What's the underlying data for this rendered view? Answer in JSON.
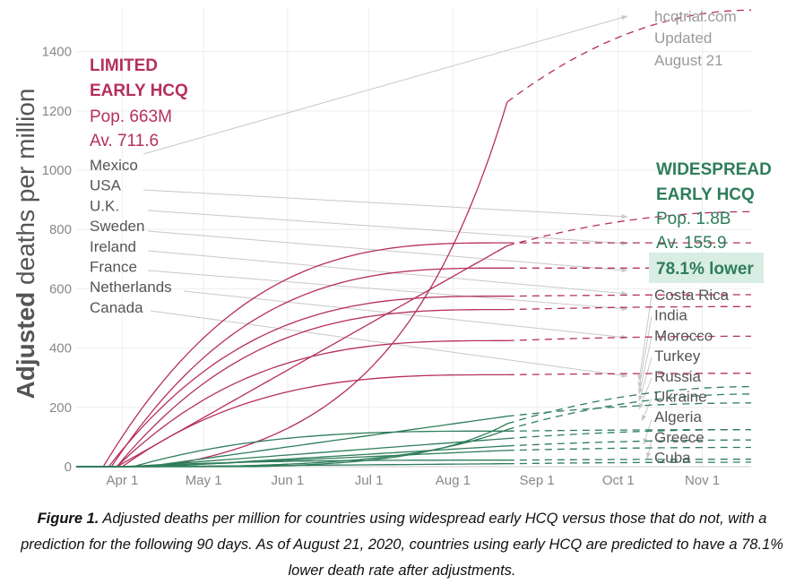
{
  "chart_data": {
    "type": "line",
    "ylabel_bold": "Adjusted",
    "ylabel_rest": " deaths per million",
    "ylim": [
      0,
      1550
    ],
    "yticks": [
      0,
      200,
      400,
      600,
      800,
      1000,
      1200,
      1400
    ],
    "xticks": [
      {
        "label": "Apr 1",
        "date": "2020-04-01"
      },
      {
        "label": "May 1",
        "date": "2020-05-01"
      },
      {
        "label": "Jun 1",
        "date": "2020-06-01"
      },
      {
        "label": "Jul 1",
        "date": "2020-07-01"
      },
      {
        "label": "Aug 1",
        "date": "2020-08-01"
      },
      {
        "label": "Sep 1",
        "date": "2020-09-01"
      },
      {
        "label": "Oct 1",
        "date": "2020-10-01"
      },
      {
        "label": "Nov 1",
        "date": "2020-11-01"
      }
    ],
    "xlim": [
      "2020-03-15",
      "2020-11-19"
    ],
    "observed_end": "2020-08-21",
    "source_note": [
      "hcqtrial.com",
      "Updated",
      "August 21"
    ],
    "limited_group": {
      "title": [
        "LIMITED",
        "EARLY HCQ"
      ],
      "pop": "Pop. 663M",
      "avg": "Av. 711.6",
      "color": "#b5305a",
      "countries": [
        "Mexico",
        "USA",
        "U.K.",
        "Sweden",
        "Ireland",
        "France",
        "Netherlands",
        "Canada"
      ]
    },
    "widespread_group": {
      "title": [
        "WIDESPREAD",
        "EARLY HCQ"
      ],
      "pop": "Pop. 1.8B",
      "avg": "Av. 155.9",
      "highlight": "78.1% lower",
      "color": "#2e7d5b",
      "highlight_bg": "#d8ede3",
      "countries": [
        "Costa Rica",
        "India",
        "Morocco",
        "Turkey",
        "Russia",
        "Ukraine",
        "Algeria",
        "Greece",
        "Cuba"
      ]
    },
    "series": [
      {
        "group": "limited",
        "shape": "exp",
        "start": "2020-04-15",
        "observed_end_value": 1230,
        "projected_end_value": 1540
      },
      {
        "group": "limited",
        "shape": "sat",
        "start": "2020-03-25",
        "observed_end_value": 755,
        "projected_end_value": 755
      },
      {
        "group": "limited",
        "shape": "lin",
        "start": "2020-03-30",
        "observed_end_value": 745,
        "projected_end_value": 860
      },
      {
        "group": "limited",
        "shape": "sat",
        "start": "2020-03-28",
        "observed_end_value": 670,
        "projected_end_value": 670
      },
      {
        "group": "limited",
        "shape": "sat",
        "start": "2020-03-27",
        "observed_end_value": 575,
        "projected_end_value": 580
      },
      {
        "group": "limited",
        "shape": "sat",
        "start": "2020-03-30",
        "observed_end_value": 530,
        "projected_end_value": 540
      },
      {
        "group": "limited",
        "shape": "sat",
        "start": "2020-03-30",
        "observed_end_value": 425,
        "projected_end_value": 440
      },
      {
        "group": "limited",
        "shape": "sat",
        "start": "2020-04-01",
        "observed_end_value": 310,
        "projected_end_value": 315
      },
      {
        "group": "widespread",
        "shape": "exp",
        "start": "2020-05-20",
        "observed_end_value": 145,
        "projected_end_value": 270
      },
      {
        "group": "widespread",
        "shape": "lin",
        "start": "2020-04-10",
        "observed_end_value": 170,
        "projected_end_value": 215
      },
      {
        "group": "widespread",
        "shape": "exp",
        "start": "2020-05-01",
        "observed_end_value": 125,
        "projected_end_value": 245
      },
      {
        "group": "widespread",
        "shape": "sat",
        "start": "2020-04-05",
        "observed_end_value": 120,
        "projected_end_value": 125
      },
      {
        "group": "widespread",
        "shape": "lin",
        "start": "2020-04-05",
        "observed_end_value": 95,
        "projected_end_value": 125
      },
      {
        "group": "widespread",
        "shape": "lin",
        "start": "2020-04-15",
        "observed_end_value": 70,
        "projected_end_value": 90
      },
      {
        "group": "widespread",
        "shape": "lin",
        "start": "2020-04-10",
        "observed_end_value": 55,
        "projected_end_value": 65
      },
      {
        "group": "widespread",
        "shape": "sat",
        "start": "2020-04-01",
        "observed_end_value": 22,
        "projected_end_value": 25
      },
      {
        "group": "widespread",
        "shape": "lin",
        "start": "2020-04-05",
        "observed_end_value": 10,
        "projected_end_value": 15
      }
    ]
  },
  "caption": {
    "label": "Figure 1.",
    "text": " Adjusted deaths per million for countries using widespread early HCQ versus those that do not, with a prediction for the following 90 days. As of August 21, 2020, countries using early HCQ are predicted to have a 78.1% lower death rate after adjustments."
  }
}
